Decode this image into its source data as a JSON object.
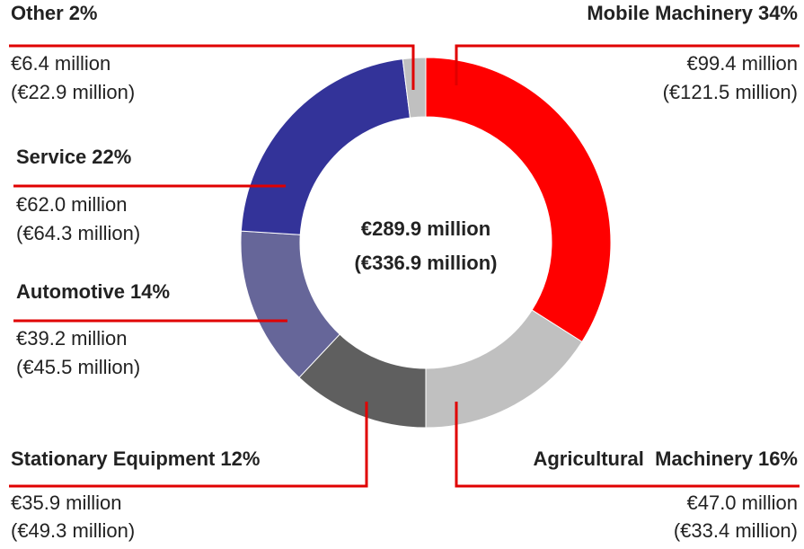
{
  "chart_data": {
    "type": "donut",
    "categories": [
      "Mobile Machinery",
      "Agricultural  Machinery",
      "Stationary Equipment",
      "Automotive",
      "Service",
      "Other"
    ],
    "values": [
      34,
      16,
      12,
      14,
      22,
      2
    ],
    "value_labels": [
      "34%",
      "16%",
      "12%",
      "14%",
      "22%",
      "2%"
    ],
    "colors": [
      "#ff0000",
      "#c0c0c0",
      "#5f5f5f",
      "#666699",
      "#333399",
      "#c0c0c0"
    ],
    "amounts": [
      "€99.4 million",
      "€47.0 million",
      "€35.9 million",
      "€39.2 million",
      "€62.0 million",
      "€6.4 million"
    ],
    "prior_amounts": [
      "(€121.5 million)",
      "(€33.4 million)",
      "(€49.3 million)",
      "(€45.5 million)",
      "(€64.3 million)",
      "(€22.9 million)"
    ],
    "center_total": "€289.9 million",
    "center_prior_total": "(€336.9 million)"
  }
}
